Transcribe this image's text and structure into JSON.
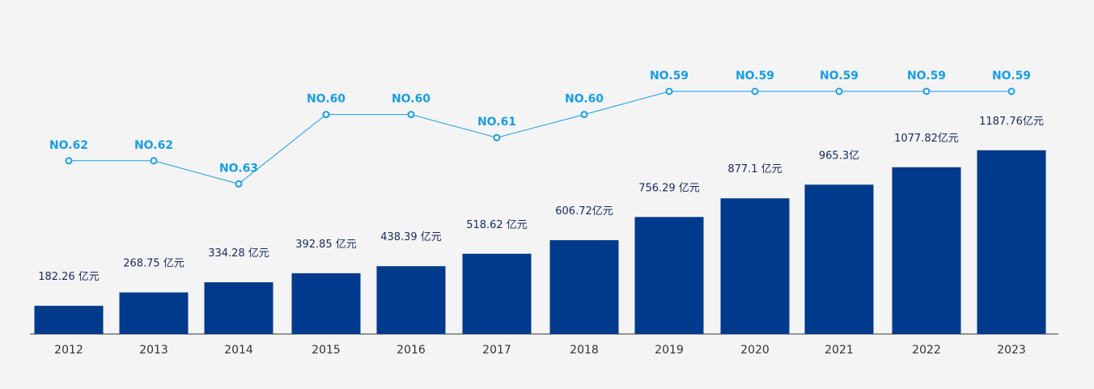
{
  "colors": {
    "background": "#f4f4f4",
    "bar": "#003a8c",
    "rank_line": "#1a9de0",
    "value_text": "#17295e",
    "axis": "#333333"
  },
  "chart_data": [
    {
      "type": "bar",
      "categories": [
        "2012",
        "2013",
        "2014",
        "2015",
        "2016",
        "2017",
        "2018",
        "2019",
        "2020",
        "2021",
        "2022",
        "2023"
      ],
      "values": [
        182.26,
        268.75,
        334.28,
        392.85,
        438.39,
        518.62,
        606.72,
        756.29,
        877.1,
        965.3,
        1077.82,
        1187.76
      ],
      "data_labels": [
        "182.26 亿元",
        "268.75 亿元",
        "334.28 亿元",
        "392.85 亿元",
        "438.39 亿元",
        "518.62 亿元",
        "606.72亿元",
        "756.29 亿元",
        "877.1 亿元",
        "965.3亿",
        "1077.82亿元",
        "1187.76亿元"
      ],
      "title": "",
      "xlabel": "",
      "ylabel": "",
      "grid": false
    },
    {
      "type": "line",
      "categories": [
        "2012",
        "2013",
        "2014",
        "2015",
        "2016",
        "2017",
        "2018",
        "2019",
        "2020",
        "2021",
        "2022",
        "2023"
      ],
      "values": [
        62,
        62,
        63,
        60,
        60,
        61,
        60,
        59,
        59,
        59,
        59,
        59
      ],
      "data_labels": [
        "NO.62",
        "NO.62",
        "NO.63",
        "NO.60",
        "NO.60",
        "NO.61",
        "NO.60",
        "NO.59",
        "NO.59",
        "NO.59",
        "NO.59",
        "NO.59"
      ],
      "y_inverted": true,
      "title": "",
      "xlabel": "",
      "ylabel": "",
      "grid": false
    }
  ]
}
